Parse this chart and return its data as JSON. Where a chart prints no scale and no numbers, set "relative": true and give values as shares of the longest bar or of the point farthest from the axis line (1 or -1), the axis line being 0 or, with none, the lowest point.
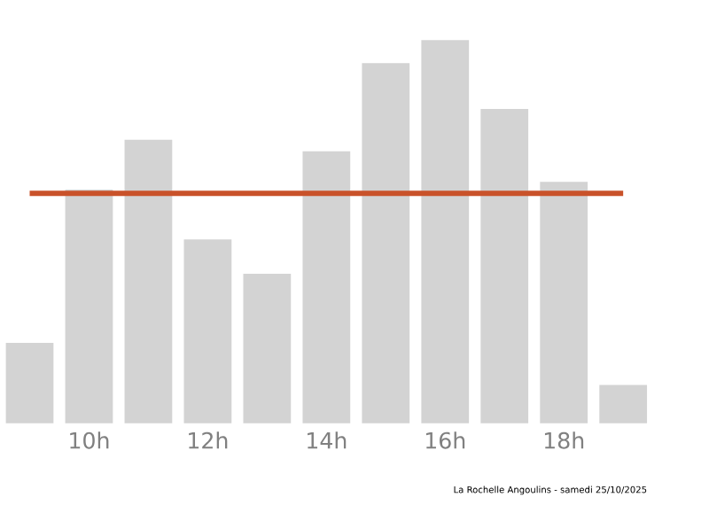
{
  "chart_data": {
    "type": "bar",
    "relative": true,
    "categories": [
      null,
      "10h",
      null,
      "12h",
      null,
      "14h",
      null,
      "16h",
      null,
      "18h",
      null
    ],
    "values": [
      0.21,
      0.61,
      0.74,
      0.48,
      0.39,
      0.71,
      0.94,
      1,
      0.82,
      0.63,
      0.1
    ],
    "color": "#d3d3d3",
    "ref_lines": [
      {
        "axis": "y",
        "value": 0.6,
        "color": "#c9522a"
      }
    ],
    "annotations": [
      "La Rochelle Angoulins - samedi 25/10/2025"
    ]
  }
}
